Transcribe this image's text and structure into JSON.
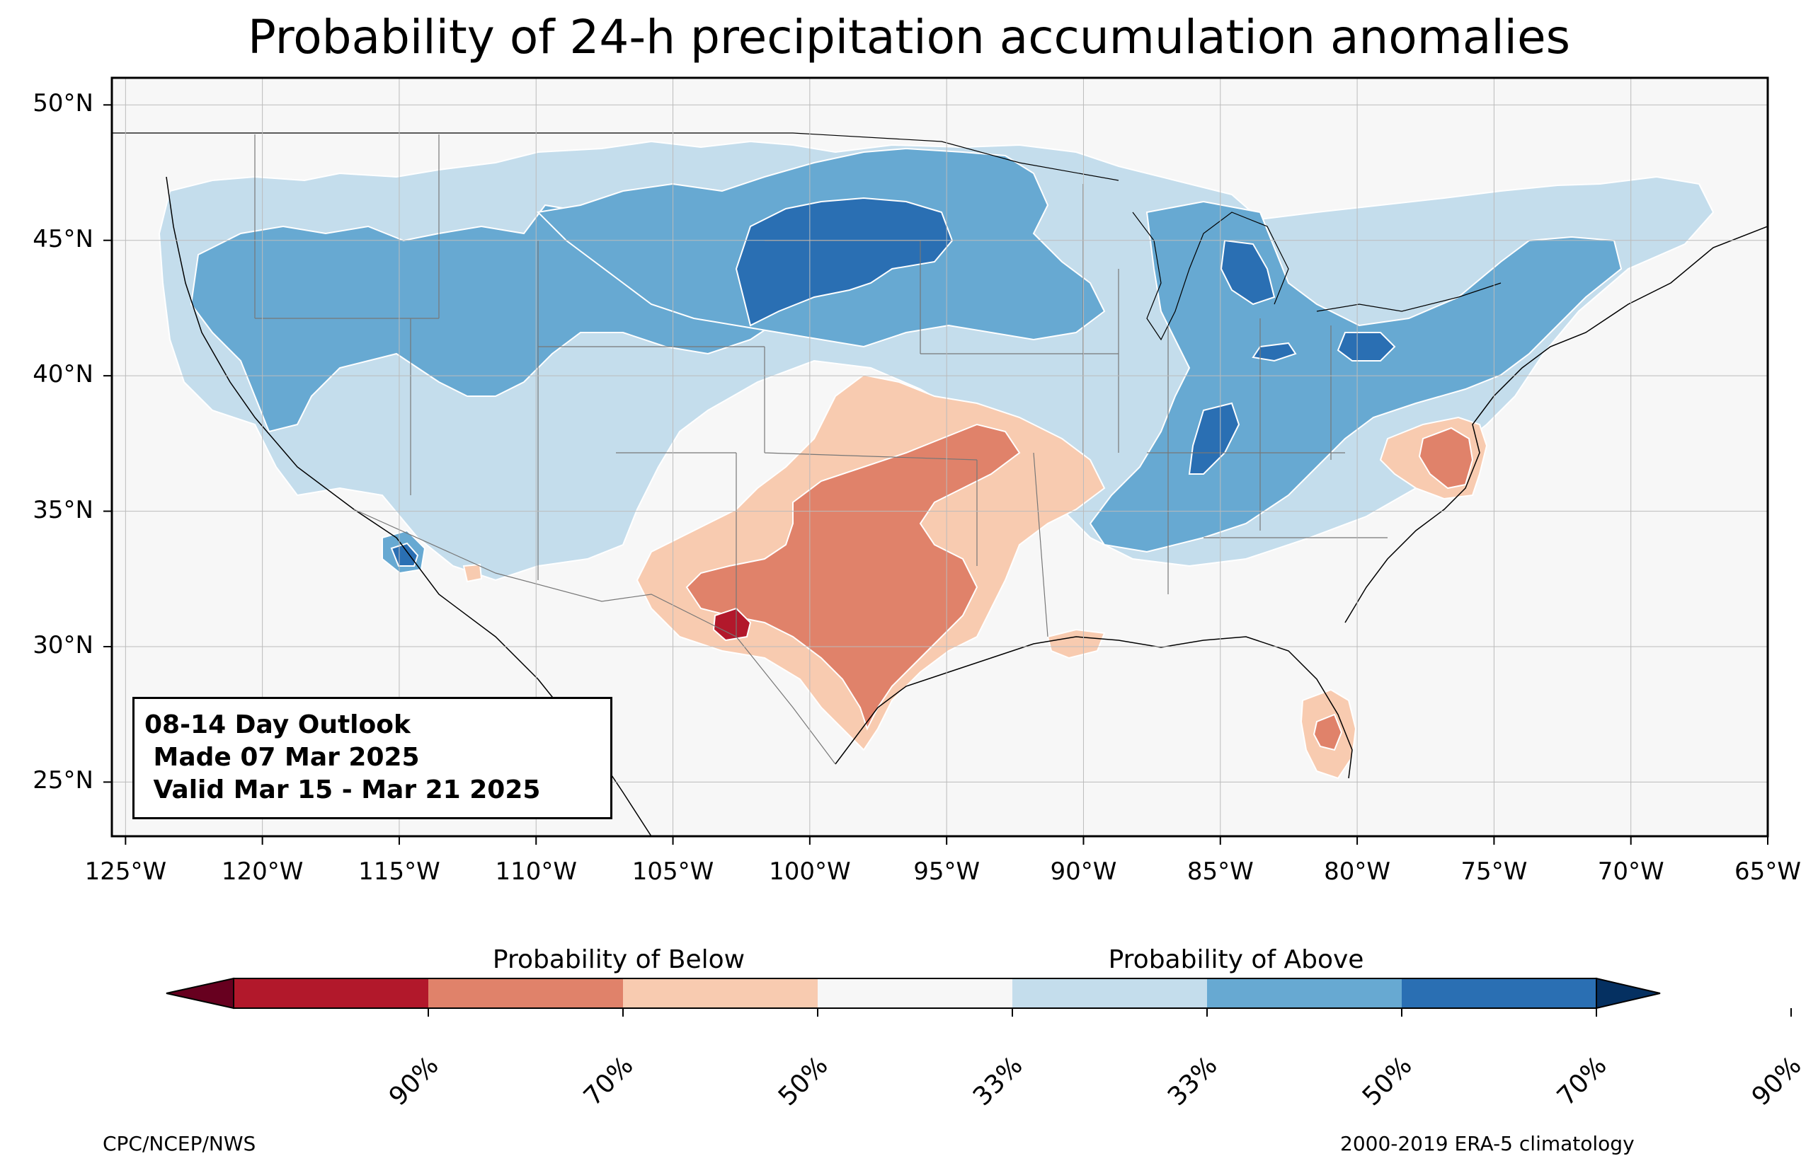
{
  "title": "Probability of 24-h precipitation accumulation anomalies",
  "outlook": {
    "line1": "08-14 Day Outlook",
    "line2": " Made 07 Mar 2025",
    "line3": " Valid Mar 15 - Mar 21 2025"
  },
  "axes": {
    "lat_ticks": [
      "25°N",
      "30°N",
      "35°N",
      "40°N",
      "45°N",
      "50°N"
    ],
    "lon_ticks": [
      "125°W",
      "120°W",
      "115°W",
      "110°W",
      "105°W",
      "100°W",
      "95°W",
      "90°W",
      "85°W",
      "80°W",
      "75°W",
      "70°W",
      "65°W"
    ],
    "lon_range": [
      -125.5,
      -65
    ],
    "lat_range": [
      23,
      51
    ]
  },
  "colorbar": {
    "below_label": "Probability of Below",
    "above_label": "Probability of Above",
    "colors": [
      "#67001f",
      "#b2182b",
      "#d6604d",
      "#f4a582",
      "#f7f7f7",
      "#92c5de",
      "#4393c3",
      "#2166ac",
      "#053061"
    ],
    "segment_colors": [
      "#b2182b",
      "#e0826a",
      "#f8cbb0",
      "#f7f7f7",
      "#c4ddec",
      "#67a9d2",
      "#2a6fb3"
    ],
    "tick_labels": [
      "90%",
      "70%",
      "50%",
      "33%",
      "33%",
      "50%",
      "70%",
      "90%"
    ]
  },
  "footer": {
    "left": "CPC/NCEP/NWS",
    "right": "2000-2019 ERA-5 climatology"
  }
}
